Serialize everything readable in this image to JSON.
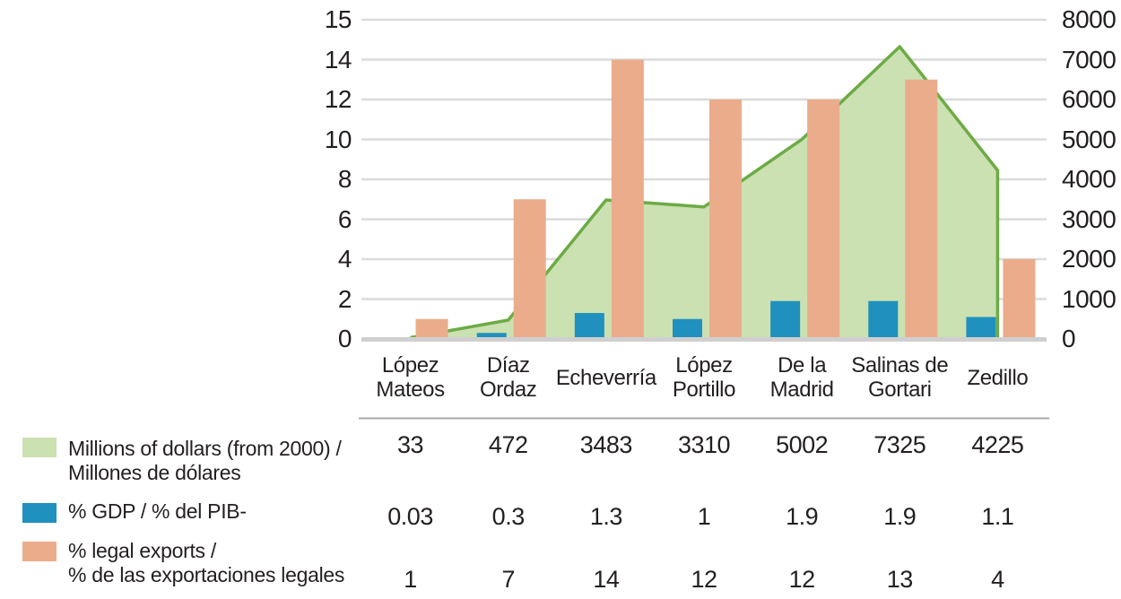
{
  "chart_data": {
    "type": "combo",
    "title": "",
    "categories": [
      "López Mateos",
      "Díaz Ordaz",
      "Echeverría",
      "López Portillo",
      "De la Madrid",
      "Salinas de Gortari",
      "Zedillo"
    ],
    "category_label_lines": [
      [
        "López",
        "Mateos"
      ],
      [
        "Díaz",
        "Ordaz"
      ],
      [
        "Echeverría"
      ],
      [
        "López",
        "Portillo"
      ],
      [
        "De la",
        "Madrid"
      ],
      [
        "Salinas de",
        "Gortari"
      ],
      [
        "Zedillo"
      ]
    ],
    "series": [
      {
        "name": "Millions of dollars (from 2000) / Millones de dólares",
        "type": "area",
        "axis": "right",
        "values": [
          33,
          472,
          3483,
          3310,
          5002,
          7325,
          4225
        ]
      },
      {
        "name": "% GDP / % del PIB-",
        "type": "bar",
        "axis": "left",
        "values": [
          0.03,
          0.3,
          1.3,
          1,
          1.9,
          1.9,
          1.1
        ]
      },
      {
        "name": "% legal exports / % de las exportaciones legales",
        "type": "bar",
        "axis": "left",
        "values": [
          1,
          7,
          14,
          12,
          12,
          13,
          4
        ]
      }
    ],
    "left_axis": {
      "tick_labels": [
        "15",
        "14",
        "12",
        "10",
        "8",
        "6",
        "4",
        "2",
        "0"
      ],
      "tick_values": [
        15,
        14,
        12,
        10,
        8,
        6,
        4,
        2,
        0
      ],
      "range": [
        0,
        15
      ]
    },
    "right_axis": {
      "tick_labels": [
        "8000",
        "7000",
        "6000",
        "5000",
        "4000",
        "3000",
        "2000",
        "1000",
        "0"
      ],
      "tick_values": [
        8000,
        7000,
        6000,
        5000,
        4000,
        3000,
        2000,
        1000,
        0
      ],
      "range": [
        0,
        8000
      ]
    },
    "grid": true,
    "legend_position": "table-left-bottom"
  },
  "table": {
    "rows": [
      {
        "swatch": "area",
        "label_lines": [
          "Millions of dollars (from 2000) /",
          "Millones de dólares"
        ],
        "values": [
          "33",
          "472",
          "3483",
          "3310",
          "5002",
          "7325",
          "4225"
        ]
      },
      {
        "swatch": "gdp",
        "label_lines": [
          "% GDP / % del PIB-"
        ],
        "values": [
          "0.03",
          "0.3",
          "1.3",
          "1",
          "1.9",
          "1.9",
          "1.1"
        ]
      },
      {
        "swatch": "exports",
        "label_lines": [
          "% legal exports /",
          "% de las exportaciones legales"
        ],
        "values": [
          "1",
          "7",
          "14",
          "12",
          "12",
          "13",
          "4"
        ]
      }
    ]
  },
  "colors": {
    "area_fill": "#cbe1b1",
    "area_line": "#6cab45",
    "gdp_bar": "#2090be",
    "exports_bar": "#ebac8b",
    "gridline": "#dbdbdb",
    "baseline": "#cfcfcf",
    "table_rule": "#a9a9a9",
    "text": "#231f20"
  }
}
